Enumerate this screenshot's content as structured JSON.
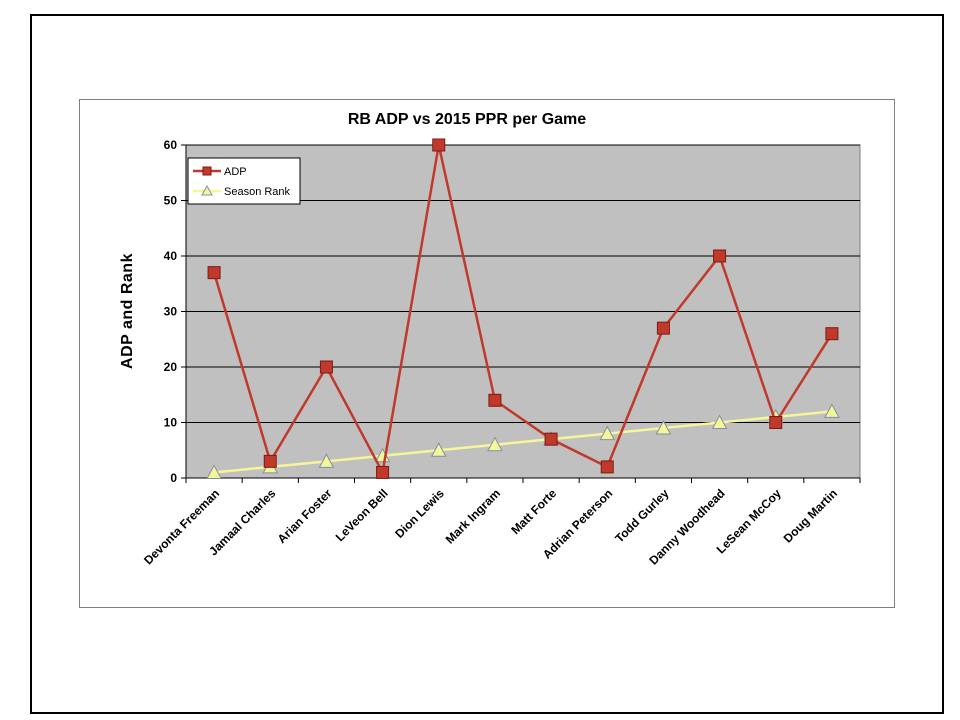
{
  "chart_data": {
    "type": "line",
    "title": "RB ADP vs 2015  PPR per Game",
    "xlabel": "",
    "ylabel": "ADP and Rank",
    "ylim": [
      0,
      60
    ],
    "yticks": [
      0,
      10,
      20,
      30,
      40,
      50,
      60
    ],
    "grid": true,
    "legend": "top-left",
    "plot_background": "#c0c0c0",
    "categories": [
      "Devonta Freeman",
      "Jamaal Charles",
      "Arian Foster",
      "LeVeon Bell",
      "Dion Lewis",
      "Mark Ingram",
      "Matt Forte",
      "Adrian Peterson",
      "Todd Gurley",
      "Danny Woodhead",
      "LeSean McCoy",
      "Doug Martin"
    ],
    "series": [
      {
        "name": "ADP",
        "values": [
          37,
          3,
          20,
          1,
          60,
          14,
          7,
          2,
          27,
          40,
          10,
          26
        ],
        "color": "#c0392b",
        "marker": "square"
      },
      {
        "name": "Season Rank",
        "values": [
          1,
          2,
          3,
          4,
          5,
          6,
          7,
          8,
          9,
          10,
          11,
          12
        ],
        "color": "#f5f59a",
        "marker": "triangle"
      }
    ]
  }
}
